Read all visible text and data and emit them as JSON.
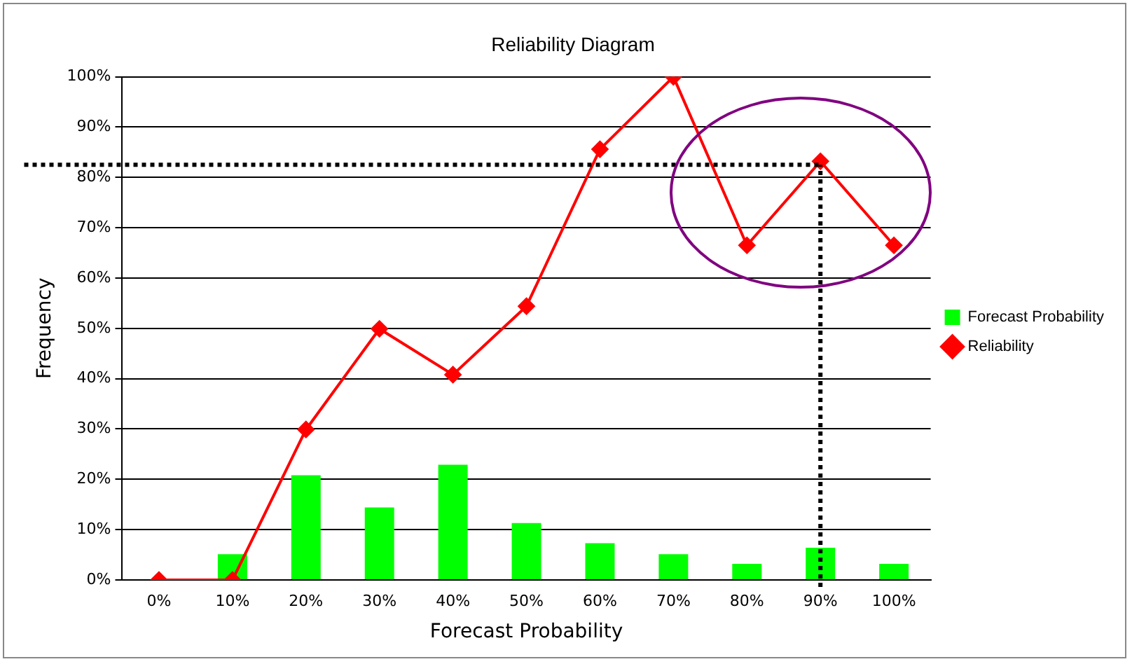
{
  "chart_data": {
    "type": "bar",
    "title": "Reliability Diagram",
    "xlabel": "Forecast Probability",
    "ylabel": "Frequency",
    "categories": [
      "0%",
      "10%",
      "20%",
      "30%",
      "40%",
      "50%",
      "60%",
      "70%",
      "80%",
      "90%",
      "100%"
    ],
    "series": [
      {
        "name": "Forecast Probability",
        "color": "#00ff00",
        "values": [
          0,
          5.1,
          20.8,
          14.4,
          22.9,
          11.3,
          7.3,
          5.1,
          3.2,
          6.4,
          3.2
        ]
      },
      {
        "name": "Reliability",
        "type": "line",
        "color": "#ff0000",
        "marker": "diamond",
        "values": [
          0,
          0,
          29.9,
          49.9,
          40.8,
          54.4,
          85.6,
          100,
          66.5,
          83.2,
          66.5
        ]
      }
    ],
    "ylim": [
      0,
      100
    ],
    "yticks": [
      {
        "value": 0,
        "label": "0%"
      },
      {
        "value": 10,
        "label": "10%"
      },
      {
        "value": 20,
        "label": "20%"
      },
      {
        "value": 30,
        "label": "30%"
      },
      {
        "value": 40,
        "label": "40%"
      },
      {
        "value": 50,
        "label": "50%"
      },
      {
        "value": 60,
        "label": "60%"
      },
      {
        "value": 70,
        "label": "70%"
      },
      {
        "value": 80,
        "label": "80%"
      },
      {
        "value": 90,
        "label": "90%"
      },
      {
        "value": 100,
        "label": "100%"
      }
    ],
    "grid": "y",
    "legend": "right",
    "ref_lines": [
      {
        "axis": "y",
        "value": 82.5,
        "color": "#000000",
        "line_style": "dotted"
      },
      {
        "axis": "x",
        "value": "90%",
        "color": "#000000",
        "line_style": "dotted"
      }
    ]
  }
}
